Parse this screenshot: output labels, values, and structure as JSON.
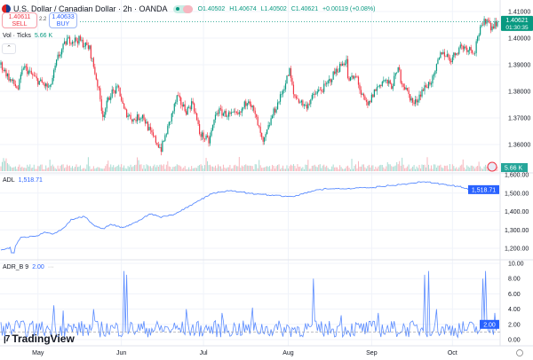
{
  "header": {
    "title": "U.S. Dollar / Canadian Dollar · 2h · OANDA",
    "open": "O1.40502",
    "high": "H1.40674",
    "low": "L1.40502",
    "close": "C1.40621",
    "change": "+0.00119 (+0.08%)"
  },
  "trade": {
    "sell_price": "1.40611",
    "sell_label": "SELL",
    "spread": "2.2",
    "buy_price": "1.40633",
    "buy_label": "BUY"
  },
  "volume_legend": {
    "name": "Vol · Ticks",
    "value": "5.66 K"
  },
  "adl_legend": {
    "name": "ADL",
    "value": "1,518.71"
  },
  "adr_legend": {
    "name": "ADR_B 9",
    "value": "2.00",
    "more": "···"
  },
  "price_axis": {
    "ticks": [
      "1.41000",
      "1.40000",
      "1.39000",
      "1.38000",
      "1.37000",
      "1.36000"
    ],
    "tick_values": [
      1.41,
      1.4,
      1.39,
      1.38,
      1.37,
      1.36
    ],
    "last_price": "1.40621",
    "countdown": "01:30:35",
    "volume_badge": "5.66 K"
  },
  "adl_axis": {
    "ticks": [
      "1,600.00",
      "1,500.00",
      "1,400.00",
      "1,300.00",
      "1,200.00"
    ],
    "tick_values": [
      1600,
      1500,
      1400,
      1300,
      1200
    ],
    "badge": "1,518.71"
  },
  "adr_axis": {
    "ticks": [
      "10.00",
      "8.00",
      "6.00",
      "4.00",
      "2.00",
      "0.00"
    ],
    "tick_values": [
      10,
      8,
      6,
      4,
      2,
      0
    ],
    "badge": "2.00"
  },
  "time_axis": {
    "labels": [
      "May",
      "Jun",
      "Jul",
      "Aug",
      "Sep",
      "Oct"
    ],
    "label_bars": [
      28,
      91,
      153,
      217,
      280,
      341
    ]
  },
  "branding": "TradingView",
  "colors": {
    "up": "#089981",
    "down": "#f23645",
    "indicator": "#2962ff",
    "grid": "#f0f3fa"
  },
  "chart_data": {
    "type": "candlestick",
    "total_bars": 376,
    "price_waypoints": [
      [
        0,
        1.39
      ],
      [
        7,
        1.3843
      ],
      [
        13,
        1.381
      ],
      [
        17,
        1.3893
      ],
      [
        27,
        1.3843
      ],
      [
        37,
        1.381
      ],
      [
        43,
        1.3927
      ],
      [
        50,
        1.3993
      ],
      [
        59,
        1.3993
      ],
      [
        67,
        1.396
      ],
      [
        70,
        1.3893
      ],
      [
        73,
        1.3827
      ],
      [
        77,
        1.371
      ],
      [
        83,
        1.3793
      ],
      [
        89,
        1.381
      ],
      [
        93,
        1.3727
      ],
      [
        100,
        1.3693
      ],
      [
        107,
        1.371
      ],
      [
        113,
        1.3643
      ],
      [
        121,
        1.3583
      ],
      [
        127,
        1.3677
      ],
      [
        133,
        1.3777
      ],
      [
        140,
        1.3727
      ],
      [
        145,
        1.376
      ],
      [
        150,
        1.3643
      ],
      [
        157,
        1.361
      ],
      [
        163,
        1.3727
      ],
      [
        173,
        1.371
      ],
      [
        180,
        1.371
      ],
      [
        187,
        1.3777
      ],
      [
        193,
        1.3693
      ],
      [
        198,
        1.36
      ],
      [
        205,
        1.371
      ],
      [
        211,
        1.3777
      ],
      [
        218,
        1.3877
      ],
      [
        221,
        1.3787
      ],
      [
        230,
        1.3743
      ],
      [
        238,
        1.3793
      ],
      [
        245,
        1.3817
      ],
      [
        253,
        1.3877
      ],
      [
        261,
        1.392
      ],
      [
        262,
        1.3843
      ],
      [
        269,
        1.3853
      ],
      [
        272,
        1.3787
      ],
      [
        277,
        1.3743
      ],
      [
        282,
        1.38
      ],
      [
        289,
        1.3843
      ],
      [
        295,
        1.382
      ],
      [
        301,
        1.3893
      ],
      [
        302,
        1.3843
      ],
      [
        308,
        1.3787
      ],
      [
        312,
        1.375
      ],
      [
        318,
        1.3803
      ],
      [
        327,
        1.385
      ],
      [
        330,
        1.391
      ],
      [
        333,
        1.395
      ],
      [
        340,
        1.392
      ],
      [
        347,
        1.397
      ],
      [
        358,
        1.3953
      ],
      [
        360,
        1.401
      ],
      [
        367,
        1.4077
      ],
      [
        370,
        1.4043
      ],
      [
        375,
        1.4062
      ]
    ],
    "adl_waypoints": [
      [
        0,
        1190
      ],
      [
        7,
        1205
      ],
      [
        8,
        1176
      ],
      [
        10,
        1176
      ],
      [
        11,
        1210
      ],
      [
        15,
        1258
      ],
      [
        22,
        1263
      ],
      [
        27,
        1263
      ],
      [
        29,
        1272
      ],
      [
        33,
        1287
      ],
      [
        40,
        1277
      ],
      [
        47,
        1306
      ],
      [
        53,
        1354
      ],
      [
        63,
        1373
      ],
      [
        71,
        1320
      ],
      [
        77,
        1306
      ],
      [
        83,
        1330
      ],
      [
        93,
        1311
      ],
      [
        105,
        1354
      ],
      [
        113,
        1388
      ],
      [
        120,
        1369
      ],
      [
        131,
        1383
      ],
      [
        145,
        1440
      ],
      [
        160,
        1499
      ],
      [
        173,
        1513
      ],
      [
        193,
        1495
      ],
      [
        220,
        1480
      ],
      [
        240,
        1520
      ],
      [
        280,
        1530
      ],
      [
        320,
        1561
      ],
      [
        347,
        1535
      ],
      [
        360,
        1499
      ],
      [
        363,
        1520
      ],
      [
        370,
        1537
      ],
      [
        375,
        1518.71
      ]
    ],
    "adr_spikes": [
      [
        12,
        2.5
      ],
      [
        40,
        4.5
      ],
      [
        47,
        3.8
      ],
      [
        70,
        4.0
      ],
      [
        93,
        9.0
      ],
      [
        95,
        8.5
      ],
      [
        140,
        4.0
      ],
      [
        167,
        3.5
      ],
      [
        190,
        4.2
      ],
      [
        236,
        8.0
      ],
      [
        257,
        3.2
      ],
      [
        285,
        3.5
      ],
      [
        320,
        8.5
      ],
      [
        323,
        9.0
      ],
      [
        329,
        4.0
      ],
      [
        364,
        8.0
      ],
      [
        366,
        9.0
      ],
      [
        373,
        3.5
      ]
    ],
    "adr_baseline": 1.0,
    "adr_last": 2.0,
    "volume_last_k": 5.66
  }
}
